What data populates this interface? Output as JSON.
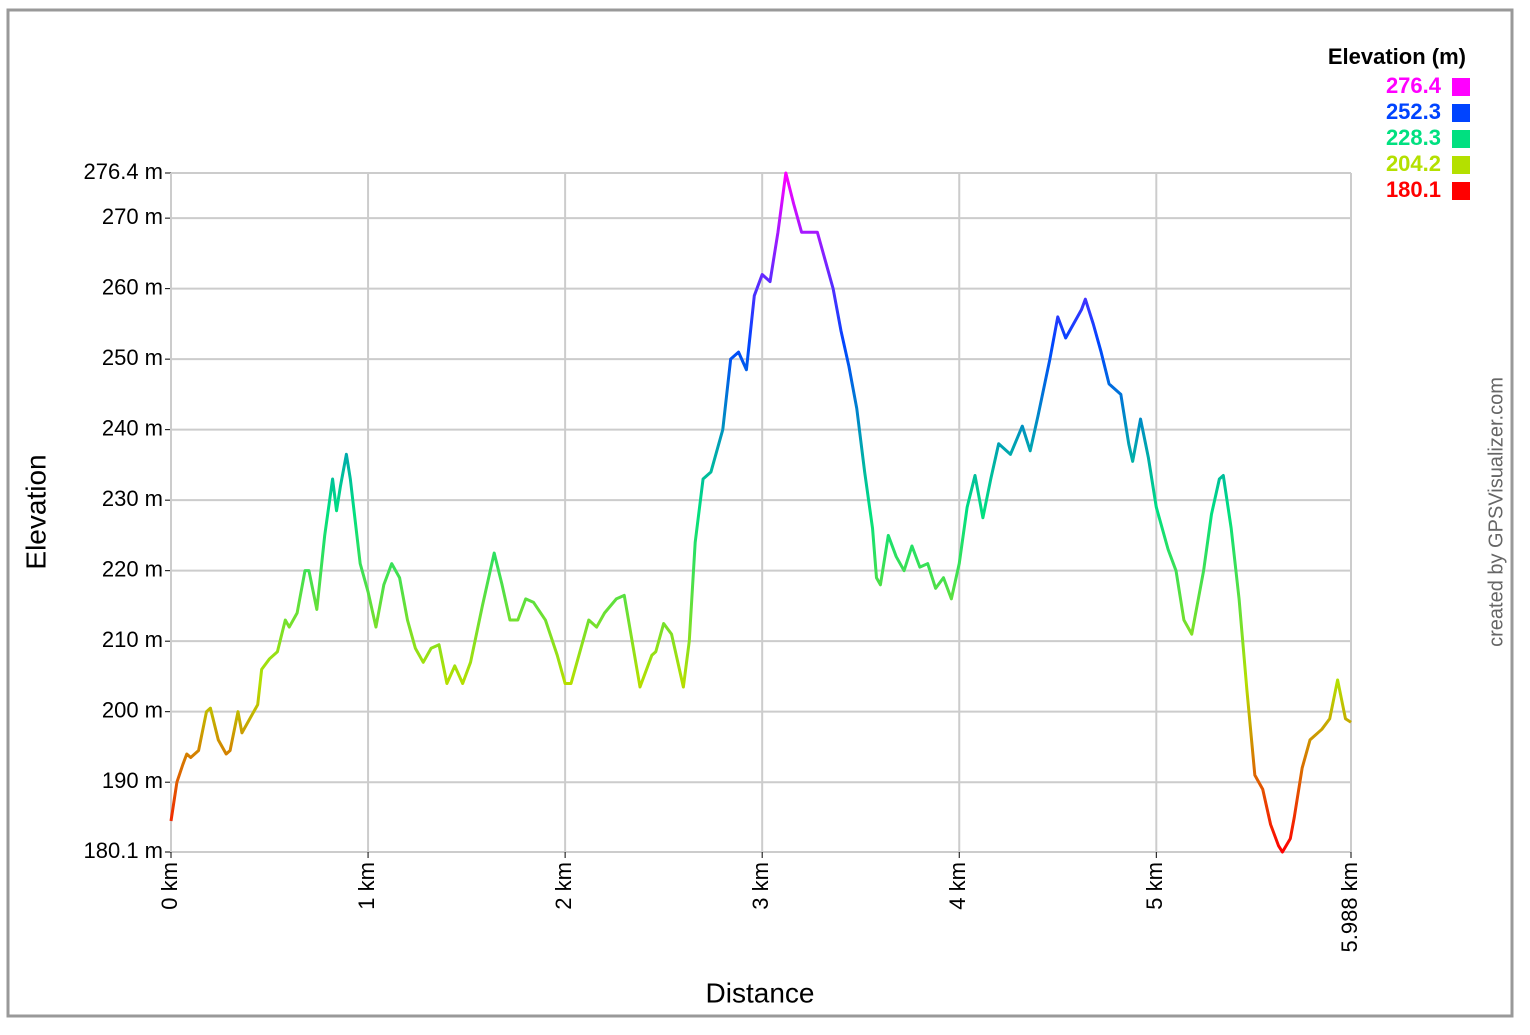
{
  "chart_data": {
    "type": "line",
    "x_label": "Distance",
    "y_label": "Elevation",
    "credit": "created by GPSVisualizer.com",
    "legend": {
      "title": "Elevation (m)",
      "position": "top-right",
      "items": [
        {
          "value": 276.4,
          "color": "#ff00ff"
        },
        {
          "value": 252.3,
          "color": "#0044ff"
        },
        {
          "value": 228.3,
          "color": "#00e080"
        },
        {
          "value": 204.2,
          "color": "#b4e000"
        },
        {
          "value": 180.1,
          "color": "#ff0000"
        }
      ]
    },
    "grid": true,
    "xlim": [
      0,
      5.988
    ],
    "ylim": [
      180.1,
      276.4
    ],
    "xticks": [
      {
        "value": 0,
        "label": "0 km"
      },
      {
        "value": 1,
        "label": "1 km"
      },
      {
        "value": 2,
        "label": "2 km"
      },
      {
        "value": 3,
        "label": "3 km"
      },
      {
        "value": 4,
        "label": "4 km"
      },
      {
        "value": 5,
        "label": "5 km"
      },
      {
        "value": 5.988,
        "label": "5.988 km"
      }
    ],
    "yticks": [
      {
        "value": 180.1,
        "label": "180.1 m"
      },
      {
        "value": 190,
        "label": "190 m"
      },
      {
        "value": 200,
        "label": "200 m"
      },
      {
        "value": 210,
        "label": "210 m"
      },
      {
        "value": 220,
        "label": "220 m"
      },
      {
        "value": 230,
        "label": "230 m"
      },
      {
        "value": 240,
        "label": "240 m"
      },
      {
        "value": 250,
        "label": "250 m"
      },
      {
        "value": 260,
        "label": "260 m"
      },
      {
        "value": 270,
        "label": "270 m"
      },
      {
        "value": 276.4,
        "label": "276.4 m"
      }
    ],
    "x": [
      0,
      0.03,
      0.06,
      0.08,
      0.1,
      0.14,
      0.18,
      0.2,
      0.24,
      0.28,
      0.3,
      0.34,
      0.36,
      0.4,
      0.44,
      0.46,
      0.5,
      0.54,
      0.58,
      0.6,
      0.64,
      0.68,
      0.7,
      0.74,
      0.78,
      0.82,
      0.84,
      0.86,
      0.89,
      0.91,
      0.96,
      1.0,
      1.04,
      1.08,
      1.12,
      1.16,
      1.2,
      1.24,
      1.28,
      1.32,
      1.36,
      1.4,
      1.44,
      1.48,
      1.52,
      1.58,
      1.64,
      1.68,
      1.72,
      1.76,
      1.8,
      1.84,
      1.9,
      1.96,
      2.0,
      2.03,
      2.06,
      2.12,
      2.16,
      2.2,
      2.26,
      2.3,
      2.34,
      2.38,
      2.4,
      2.44,
      2.46,
      2.5,
      2.54,
      2.6,
      2.63,
      2.66,
      2.7,
      2.74,
      2.8,
      2.84,
      2.88,
      2.92,
      2.96,
      3.0,
      3.04,
      3.08,
      3.12,
      3.16,
      3.2,
      3.28,
      3.32,
      3.36,
      3.4,
      3.44,
      3.48,
      3.52,
      3.56,
      3.58,
      3.6,
      3.64,
      3.68,
      3.72,
      3.76,
      3.8,
      3.84,
      3.88,
      3.92,
      3.96,
      4.0,
      4.04,
      4.08,
      4.12,
      4.16,
      4.2,
      4.26,
      4.32,
      4.36,
      4.4,
      4.46,
      4.5,
      4.54,
      4.58,
      4.62,
      4.64,
      4.68,
      4.72,
      4.76,
      4.82,
      4.86,
      4.88,
      4.92,
      4.96,
      5.0,
      5.06,
      5.1,
      5.14,
      5.18,
      5.24,
      5.28,
      5.32,
      5.34,
      5.38,
      5.42,
      5.46,
      5.5,
      5.54,
      5.58,
      5.62,
      5.64,
      5.68,
      5.7,
      5.74,
      5.78,
      5.84,
      5.88,
      5.92,
      5.96,
      5.988
    ],
    "values": [
      184.5,
      190,
      192.5,
      194,
      193.5,
      194.5,
      200,
      200.5,
      196,
      194,
      194.5,
      200,
      197,
      199,
      201,
      206,
      207.5,
      208.5,
      213,
      212,
      214,
      220,
      220,
      214.5,
      225,
      233,
      228.5,
      232,
      236.5,
      233,
      221,
      217,
      212,
      218,
      221,
      219,
      213,
      209,
      207,
      209,
      209.5,
      204,
      206.5,
      204,
      207,
      215,
      222.5,
      218,
      213,
      213,
      216,
      215.5,
      213,
      208,
      204,
      204,
      207,
      213,
      212,
      214,
      216,
      216.5,
      210,
      203.5,
      205,
      208,
      208.5,
      212.5,
      211,
      203.5,
      210,
      224,
      233,
      234,
      240,
      250,
      251,
      248.5,
      259,
      262,
      261,
      268,
      276.4,
      272,
      268,
      268,
      264,
      260,
      254,
      249,
      243,
      234,
      226,
      219,
      218,
      225,
      222,
      220,
      223.5,
      220.5,
      221,
      217.5,
      219,
      216,
      221,
      229,
      233.5,
      227.5,
      233,
      238,
      236.5,
      240.5,
      237,
      242,
      250,
      256,
      253,
      255,
      257,
      258.5,
      255,
      251,
      246.5,
      245,
      238,
      235.5,
      241.5,
      236,
      229,
      223,
      220,
      213,
      211,
      220,
      228,
      233,
      233.5,
      226,
      216,
      203,
      191,
      189,
      184,
      181,
      180.1,
      182,
      185,
      192,
      196,
      197.5,
      199,
      204.5,
      199,
      198.5
    ]
  }
}
